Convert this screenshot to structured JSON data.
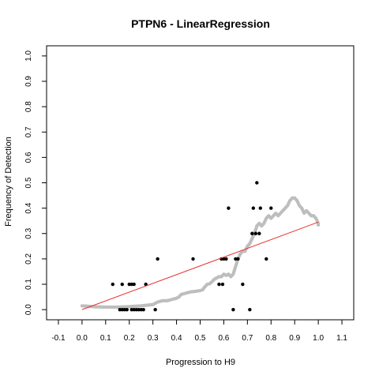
{
  "chart_data": {
    "type": "scatter",
    "title": "PTPN6 - LinearRegression",
    "xlabel": "Progression to H9",
    "ylabel": "Frequency of Detection",
    "xlim": [
      -0.15,
      1.15
    ],
    "ylim": [
      -0.04,
      1.04
    ],
    "x_ticks": [
      -0.1,
      0.0,
      0.1,
      0.2,
      0.3,
      0.4,
      0.5,
      0.6,
      0.7,
      0.8,
      0.9,
      1.0,
      1.1
    ],
    "x_tick_labels": [
      "-0.1",
      "0.0",
      "0.1",
      "0.2",
      "0.3",
      "0.4",
      "0.5",
      "0.6",
      "0.7",
      "0.8",
      "0.9",
      "1.0",
      "1.1"
    ],
    "y_ticks": [
      0.0,
      0.1,
      0.2,
      0.3,
      0.4,
      0.5,
      0.6,
      0.7,
      0.8,
      0.9,
      1.0
    ],
    "y_tick_labels": [
      "0.0",
      "0.1",
      "0.2",
      "0.3",
      "0.4",
      "0.5",
      "0.6",
      "0.7",
      "0.8",
      "0.9",
      "1.0"
    ],
    "grid": false,
    "colors": {
      "points": "#000000",
      "smooth": "#bebebe",
      "fit": "#e8302e",
      "frame": "#000000"
    },
    "series": [
      {
        "kind": "points",
        "points": [
          [
            0.13,
            0.1
          ],
          [
            0.16,
            0.0
          ],
          [
            0.17,
            0.0
          ],
          [
            0.17,
            0.1
          ],
          [
            0.18,
            0.0
          ],
          [
            0.19,
            0.0
          ],
          [
            0.2,
            0.1
          ],
          [
            0.21,
            0.0
          ],
          [
            0.21,
            0.1
          ],
          [
            0.22,
            0.0
          ],
          [
            0.22,
            0.1
          ],
          [
            0.23,
            0.0
          ],
          [
            0.24,
            0.0
          ],
          [
            0.25,
            0.0
          ],
          [
            0.26,
            0.0
          ],
          [
            0.27,
            0.1
          ],
          [
            0.31,
            0.0
          ],
          [
            0.32,
            0.2
          ],
          [
            0.47,
            0.2
          ],
          [
            0.58,
            0.1
          ],
          [
            0.59,
            0.2
          ],
          [
            0.595,
            0.1
          ],
          [
            0.6,
            0.2
          ],
          [
            0.61,
            0.2
          ],
          [
            0.62,
            0.4
          ],
          [
            0.64,
            0.0
          ],
          [
            0.65,
            0.2
          ],
          [
            0.66,
            0.2
          ],
          [
            0.68,
            0.1
          ],
          [
            0.71,
            0.0
          ],
          [
            0.72,
            0.3
          ],
          [
            0.725,
            0.4
          ],
          [
            0.735,
            0.3
          ],
          [
            0.74,
            0.5
          ],
          [
            0.75,
            0.3
          ],
          [
            0.755,
            0.4
          ],
          [
            0.78,
            0.2
          ],
          [
            0.8,
            0.4
          ]
        ]
      },
      {
        "kind": "smooth",
        "points": [
          [
            0.0,
            0.015
          ],
          [
            0.03,
            0.013
          ],
          [
            0.06,
            0.011
          ],
          [
            0.1,
            0.01
          ],
          [
            0.15,
            0.01
          ],
          [
            0.2,
            0.012
          ],
          [
            0.25,
            0.015
          ],
          [
            0.28,
            0.018
          ],
          [
            0.3,
            0.02
          ],
          [
            0.32,
            0.03
          ],
          [
            0.34,
            0.035
          ],
          [
            0.36,
            0.035
          ],
          [
            0.38,
            0.04
          ],
          [
            0.4,
            0.045
          ],
          [
            0.41,
            0.05
          ],
          [
            0.42,
            0.06
          ],
          [
            0.44,
            0.065
          ],
          [
            0.46,
            0.07
          ],
          [
            0.48,
            0.072
          ],
          [
            0.5,
            0.075
          ],
          [
            0.51,
            0.078
          ],
          [
            0.52,
            0.09
          ],
          [
            0.53,
            0.1
          ],
          [
            0.54,
            0.102
          ],
          [
            0.55,
            0.11
          ],
          [
            0.56,
            0.12
          ],
          [
            0.57,
            0.125
          ],
          [
            0.58,
            0.13
          ],
          [
            0.59,
            0.13
          ],
          [
            0.6,
            0.14
          ],
          [
            0.61,
            0.135
          ],
          [
            0.62,
            0.14
          ],
          [
            0.63,
            0.13
          ],
          [
            0.64,
            0.14
          ],
          [
            0.65,
            0.17
          ],
          [
            0.66,
            0.2
          ],
          [
            0.67,
            0.22
          ],
          [
            0.68,
            0.23
          ],
          [
            0.69,
            0.23
          ],
          [
            0.7,
            0.25
          ],
          [
            0.71,
            0.26
          ],
          [
            0.72,
            0.28
          ],
          [
            0.73,
            0.3
          ],
          [
            0.74,
            0.33
          ],
          [
            0.75,
            0.34
          ],
          [
            0.76,
            0.33
          ],
          [
            0.77,
            0.34
          ],
          [
            0.78,
            0.36
          ],
          [
            0.79,
            0.37
          ],
          [
            0.8,
            0.36
          ],
          [
            0.81,
            0.37
          ],
          [
            0.82,
            0.38
          ],
          [
            0.83,
            0.37
          ],
          [
            0.84,
            0.38
          ],
          [
            0.85,
            0.39
          ],
          [
            0.86,
            0.4
          ],
          [
            0.87,
            0.41
          ],
          [
            0.88,
            0.43
          ],
          [
            0.89,
            0.44
          ],
          [
            0.9,
            0.44
          ],
          [
            0.91,
            0.43
          ],
          [
            0.92,
            0.41
          ],
          [
            0.93,
            0.4
          ],
          [
            0.94,
            0.38
          ],
          [
            0.95,
            0.39
          ],
          [
            0.96,
            0.38
          ],
          [
            0.97,
            0.37
          ],
          [
            0.98,
            0.37
          ],
          [
            0.99,
            0.36
          ],
          [
            1.0,
            0.34
          ],
          [
            1.0,
            0.33
          ]
        ]
      },
      {
        "kind": "fit",
        "points": [
          [
            0.0,
            0.0
          ],
          [
            1.0,
            0.345
          ]
        ]
      }
    ]
  }
}
